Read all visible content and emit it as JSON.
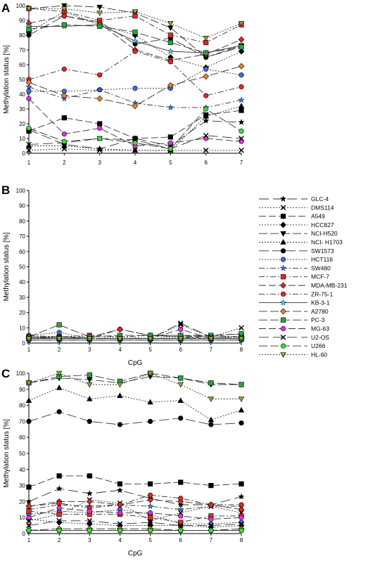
{
  "colors": {
    "red": "#e8251f",
    "blue": "#3a6fe0",
    "orange": "#f08020",
    "green_dark": "#2aa142",
    "magenta": "#e030e0",
    "lime": "#3cdc3c",
    "olive": "#8ea83a",
    "cyan": "#40c8e8",
    "black": "#000000"
  },
  "legend": [
    {
      "name": "GLC-4",
      "marker": "star",
      "color": "#000000",
      "dash": "14 6"
    },
    {
      "name": "DMS114",
      "marker": "x",
      "color": "#000000",
      "dash": "2 2"
    },
    {
      "name": "A549",
      "marker": "square",
      "color": "#000000",
      "dash": "10 4"
    },
    {
      "name": "HCC827",
      "marker": "diamond",
      "color": "#000000",
      "dash": "2 2"
    },
    {
      "name": "NCI-H520",
      "marker": "triangle-down",
      "color": "#000000",
      "dash": "12 4"
    },
    {
      "name": "NCI- H1703",
      "marker": "triangle",
      "color": "#000000",
      "dash": "2 2"
    },
    {
      "name": "SW1573",
      "marker": "circle",
      "color": "#000000",
      "dash": "14 5"
    },
    {
      "name": "HCT116",
      "marker": "circle",
      "color": "#3a6fe0",
      "dash": "2 2"
    },
    {
      "name": "SW480",
      "marker": "star",
      "color": "#3a6fe0",
      "dash": "8 3 2 3"
    },
    {
      "name": "MCF-7",
      "marker": "square",
      "color": "#e8251f",
      "dash": "8 3 2 3"
    },
    {
      "name": "MDA-MB-231",
      "marker": "diamond",
      "color": "#e8251f",
      "dash": "10 4"
    },
    {
      "name": "ZR-75-1",
      "marker": "circle",
      "color": "#e8251f",
      "dash": "8 3 2 3"
    },
    {
      "name": "KB-3-1",
      "marker": "star",
      "color": "#40c8e8",
      "dash": ""
    },
    {
      "name": "A2780",
      "marker": "diamond",
      "color": "#f08020",
      "dash": "12 4"
    },
    {
      "name": "PC-3",
      "marker": "square",
      "color": "#2aa142",
      "dash": "12 4"
    },
    {
      "name": "MG-63",
      "marker": "circle",
      "color": "#e030e0",
      "dash": "10 4"
    },
    {
      "name": "U2-OS",
      "marker": "x",
      "color": "#000000",
      "dash": "14 6"
    },
    {
      "name": "U266",
      "marker": "circle",
      "color": "#3cdc3c",
      "dash": "12 4"
    },
    {
      "name": "HL-60",
      "marker": "triangle-down",
      "color": "#8ea83a",
      "dash": "2 2"
    }
  ],
  "chart_data": [
    {
      "panel": "A",
      "type": "line",
      "ylabel": "Methylation status [%]",
      "xlabel": "",
      "ylim": [
        0,
        100
      ],
      "yticks": [
        0,
        10,
        20,
        30,
        40,
        50,
        60,
        70,
        80,
        90,
        100
      ],
      "x": [
        1,
        2,
        3,
        4,
        5,
        6,
        7
      ],
      "grid": false,
      "series": [
        {
          "name": "GLC-4",
          "values": [
            16,
            6,
            3,
            10,
            5,
            22,
            21
          ]
        },
        {
          "name": "DMS114",
          "values": [
            2,
            3,
            2,
            2,
            2,
            2,
            2
          ]
        },
        {
          "name": "A549",
          "values": [
            15,
            24,
            20,
            10,
            11,
            26,
            29
          ]
        },
        {
          "name": "HCC827",
          "values": [
            82,
            96,
            87,
            80,
            65,
            58,
            69
          ]
        },
        {
          "name": "NCI-H520",
          "values": [
            98,
            100,
            99,
            95,
            85,
            65,
            73
          ]
        },
        {
          "name": "NCI- H1703",
          "values": [
            5,
            5,
            3,
            2,
            2,
            25,
            32
          ]
        },
        {
          "name": "SW1573",
          "values": [
            80,
            93,
            89,
            74,
            78,
            65,
            72
          ]
        },
        {
          "name": "HCT116",
          "values": [
            42,
            42,
            43,
            44,
            44,
            57,
            53
          ]
        },
        {
          "name": "SW480",
          "values": [
            45,
            37,
            43,
            34,
            31,
            31,
            36
          ]
        },
        {
          "name": "MCF-7",
          "values": [
            98,
            96,
            90,
            93,
            80,
            75,
            87
          ]
        },
        {
          "name": "MDA-MB-231",
          "values": [
            88,
            93,
            88,
            70,
            63,
            67,
            77
          ]
        },
        {
          "name": "ZR-75-1",
          "values": [
            50,
            57,
            53,
            69,
            62,
            39,
            45
          ]
        },
        {
          "name": "KB-3-1",
          "values": [
            86,
            86,
            87,
            76,
            69,
            68,
            73
          ]
        },
        {
          "name": "A2780",
          "values": [
            48,
            39,
            37,
            32,
            46,
            52,
            59
          ]
        },
        {
          "name": "PC-3",
          "values": [
            84,
            87,
            86,
            82,
            75,
            68,
            72
          ]
        },
        {
          "name": "MG-63",
          "values": [
            37,
            13,
            17,
            5,
            7,
            10,
            8
          ]
        },
        {
          "name": "U2-OS",
          "values": [
            6,
            7,
            10,
            9,
            3,
            12,
            10
          ]
        },
        {
          "name": "U266",
          "values": [
            17,
            8,
            10,
            7,
            3,
            30,
            15
          ]
        },
        {
          "name": "HL-60",
          "values": [
            98,
            98,
            95,
            96,
            88,
            78,
            88
          ]
        }
      ]
    },
    {
      "panel": "B",
      "type": "line",
      "ylabel": "Methylation status [%]",
      "xlabel": "CpG",
      "ylim": [
        0,
        100
      ],
      "yticks": [
        0,
        10,
        20,
        30,
        40,
        50,
        60,
        70,
        80,
        90,
        100
      ],
      "x": [
        1,
        2,
        3,
        4,
        5,
        6,
        7,
        8
      ],
      "grid": false,
      "series": [
        {
          "name": "GLC-4",
          "values": [
            3,
            3,
            3,
            3,
            3,
            3,
            3,
            3
          ]
        },
        {
          "name": "DMS114",
          "values": [
            3,
            4,
            3,
            3,
            3,
            12,
            4,
            10
          ]
        },
        {
          "name": "A549",
          "values": [
            3,
            3,
            3,
            3,
            3,
            3,
            5,
            6
          ]
        },
        {
          "name": "HCC827",
          "values": [
            4,
            3,
            3,
            3,
            3,
            3,
            3,
            3
          ]
        },
        {
          "name": "NCI-H520",
          "values": [
            3,
            3,
            3,
            3,
            3,
            3,
            3,
            3
          ]
        },
        {
          "name": "NCI- H1703",
          "values": [
            3,
            3,
            3,
            3,
            3,
            3,
            3,
            3
          ]
        },
        {
          "name": "SW1573",
          "values": [
            2,
            2,
            2,
            2,
            2,
            2,
            2,
            2
          ]
        },
        {
          "name": "HCT116",
          "values": [
            5,
            7,
            3,
            4,
            3,
            4,
            3,
            4
          ]
        },
        {
          "name": "SW480",
          "values": [
            3,
            4,
            3,
            3,
            3,
            3,
            3,
            3
          ]
        },
        {
          "name": "MCF-7",
          "values": [
            4,
            4,
            5,
            4,
            5,
            4,
            5,
            4
          ]
        },
        {
          "name": "MDA-MB-231",
          "values": [
            4,
            4,
            4,
            9,
            5,
            5,
            4,
            4
          ]
        },
        {
          "name": "ZR-75-1",
          "values": [
            5,
            4,
            3,
            9,
            5,
            4,
            3,
            3
          ]
        },
        {
          "name": "KB-3-1",
          "values": [
            2,
            2,
            2,
            2,
            2,
            2,
            2,
            2
          ]
        },
        {
          "name": "A2780",
          "values": [
            3,
            3,
            3,
            3,
            3,
            3,
            3,
            3
          ]
        },
        {
          "name": "PC-3",
          "values": [
            4,
            12,
            4,
            5,
            5,
            5,
            5,
            6
          ]
        },
        {
          "name": "MG-63",
          "values": [
            3,
            3,
            3,
            3,
            3,
            9,
            3,
            3
          ]
        },
        {
          "name": "U2-OS",
          "values": [
            4,
            4,
            3,
            3,
            3,
            13,
            4,
            4
          ]
        },
        {
          "name": "U266",
          "values": [
            3,
            3,
            3,
            3,
            3,
            3,
            3,
            3
          ]
        },
        {
          "name": "HL-60",
          "values": [
            3,
            3,
            3,
            3,
            3,
            3,
            3,
            3
          ]
        }
      ]
    },
    {
      "panel": "C",
      "type": "line",
      "ylabel": "Methylation status [%]",
      "xlabel": "CpG",
      "ylim": [
        0,
        100
      ],
      "yticks": [
        0,
        10,
        20,
        30,
        40,
        50,
        60,
        70,
        80,
        90,
        100
      ],
      "x": [
        1,
        2,
        3,
        4,
        5,
        6,
        7,
        8
      ],
      "grid": false,
      "series": [
        {
          "name": "GLC-4",
          "values": [
            20,
            28,
            25,
            27,
            22,
            18,
            18,
            23
          ]
        },
        {
          "name": "DMS114",
          "values": [
            8,
            12,
            21,
            19,
            8,
            13,
            17,
            13
          ]
        },
        {
          "name": "A549",
          "values": [
            29,
            36,
            36,
            31,
            31,
            32,
            30,
            31
          ]
        },
        {
          "name": "HCC827",
          "values": [
            9,
            7,
            6,
            5,
            5,
            5,
            4,
            5
          ]
        },
        {
          "name": "NCI-H520",
          "values": [
            94,
            97,
            96,
            94,
            98,
            97,
            93,
            93
          ]
        },
        {
          "name": "NCI- H1703",
          "values": [
            83,
            91,
            84,
            86,
            82,
            83,
            71,
            77
          ]
        },
        {
          "name": "SW1573",
          "values": [
            70,
            76,
            70,
            68,
            70,
            72,
            68,
            69
          ]
        },
        {
          "name": "HCT116",
          "values": [
            12,
            14,
            13,
            15,
            12,
            6,
            6,
            7
          ]
        },
        {
          "name": "SW480",
          "values": [
            15,
            18,
            17,
            18,
            17,
            15,
            17,
            17
          ]
        },
        {
          "name": "MCF-7",
          "values": [
            14,
            12,
            12,
            12,
            10,
            7,
            11,
            11
          ]
        },
        {
          "name": "MDA-MB-231",
          "values": [
            17,
            20,
            20,
            18,
            21,
            20,
            18,
            15
          ]
        },
        {
          "name": "ZR-75-1",
          "values": [
            17,
            19,
            16,
            18,
            24,
            22,
            18,
            18
          ]
        },
        {
          "name": "KB-3-1",
          "values": [
            2,
            2,
            2,
            2,
            2,
            2,
            2,
            2
          ]
        },
        {
          "name": "A2780",
          "values": [
            2,
            3,
            3,
            3,
            3,
            2,
            2,
            3
          ]
        },
        {
          "name": "PC-3",
          "values": [
            94,
            98,
            99,
            95,
            100,
            97,
            94,
            93
          ]
        },
        {
          "name": "MG-63",
          "values": [
            10,
            16,
            14,
            13,
            13,
            11,
            9,
            10
          ]
        },
        {
          "name": "U2-OS",
          "values": [
            5,
            8,
            8,
            6,
            7,
            5,
            5,
            6
          ]
        },
        {
          "name": "U266",
          "values": [
            2,
            2,
            2,
            2,
            2,
            2,
            2,
            2
          ]
        },
        {
          "name": "HL-60",
          "values": [
            94,
            100,
            93,
            93,
            100,
            93,
            84,
            84
          ]
        }
      ]
    }
  ]
}
